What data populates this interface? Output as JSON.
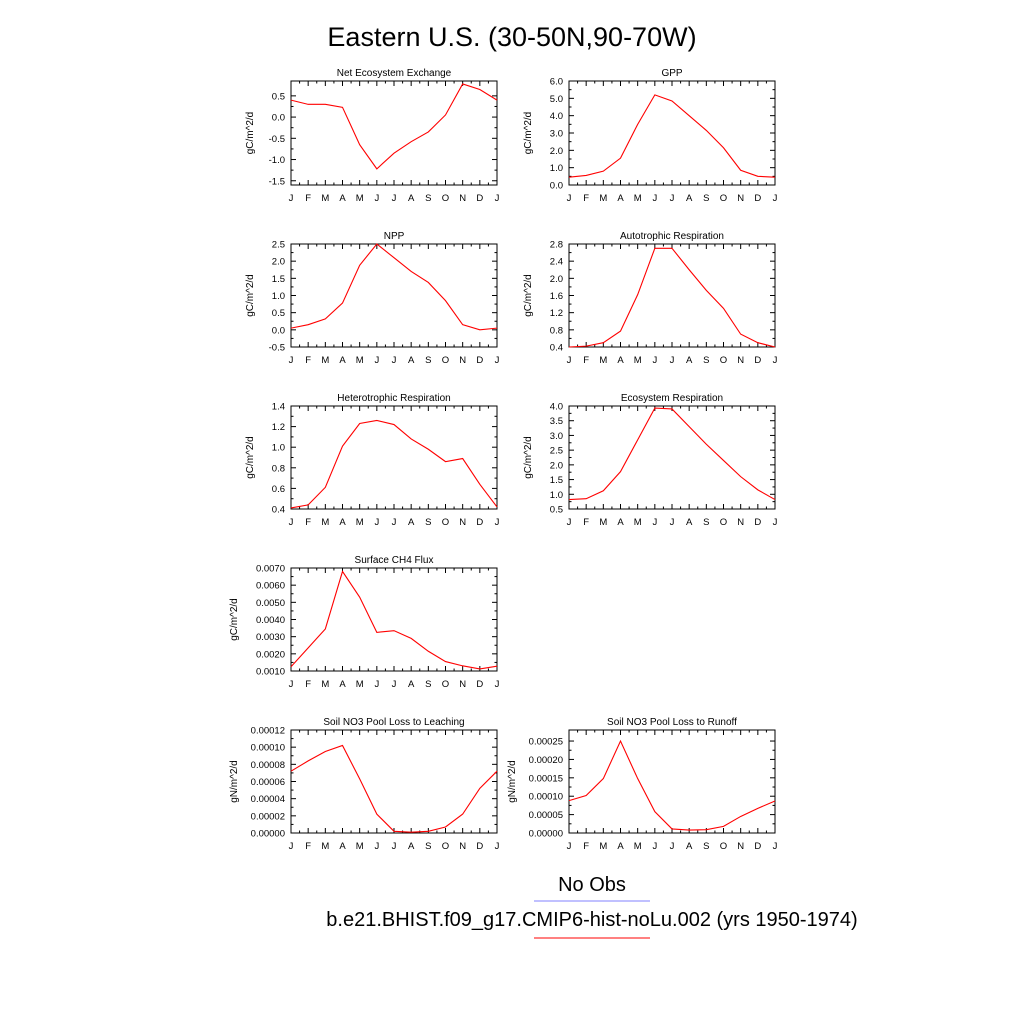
{
  "figure": {
    "title": "Eastern U.S. (30-50N,90-70W)",
    "series_color": "#ff0000",
    "obs_color": "#8080ff"
  },
  "legend": {
    "obs_label": "No Obs",
    "model_label": "b.e21.BHIST.f09_g17.CMIP6-hist-noLu.002 (yrs 1950-1974)"
  },
  "chart_data": [
    {
      "type": "line",
      "title": "Net Ecosystem Exchange",
      "ylabel": "gC/m^2/d",
      "x": [
        "J",
        "F",
        "M",
        "A",
        "M",
        "J",
        "J",
        "A",
        "S",
        "O",
        "N",
        "D",
        "J"
      ],
      "ylim": [
        -1.6,
        0.85
      ],
      "yticks": [
        -1.5,
        -1.0,
        -0.5,
        0.0,
        0.5
      ],
      "ytick_labels": [
        "-1.5",
        "-1.0",
        "-0.5",
        "0.0",
        "0.5"
      ],
      "series": [
        {
          "values": [
            0.4,
            0.3,
            0.3,
            0.23,
            -0.65,
            -1.22,
            -0.85,
            -0.58,
            -0.35,
            0.05,
            0.78,
            0.65,
            0.4
          ]
        }
      ]
    },
    {
      "type": "line",
      "title": "GPP",
      "ylabel": "gC/m^2/d",
      "x": [
        "J",
        "F",
        "M",
        "A",
        "M",
        "J",
        "J",
        "A",
        "S",
        "O",
        "N",
        "D",
        "J"
      ],
      "ylim": [
        0.0,
        6.0
      ],
      "yticks": [
        0.0,
        1.0,
        2.0,
        3.0,
        4.0,
        5.0,
        6.0
      ],
      "ytick_labels": [
        "0.0",
        "1.0",
        "2.0",
        "3.0",
        "4.0",
        "5.0",
        "6.0"
      ],
      "series": [
        {
          "values": [
            0.45,
            0.55,
            0.8,
            1.55,
            3.5,
            5.2,
            4.85,
            4.0,
            3.15,
            2.15,
            0.85,
            0.5,
            0.45
          ]
        }
      ]
    },
    {
      "type": "line",
      "title": "NPP",
      "ylabel": "gC/m^2/d",
      "x": [
        "J",
        "F",
        "M",
        "A",
        "M",
        "J",
        "J",
        "A",
        "S",
        "O",
        "N",
        "D",
        "J"
      ],
      "ylim": [
        -0.5,
        2.5
      ],
      "yticks": [
        -0.5,
        0.0,
        0.5,
        1.0,
        1.5,
        2.0,
        2.5
      ],
      "ytick_labels": [
        "-0.5",
        "0.0",
        "0.5",
        "1.0",
        "1.5",
        "2.0",
        "2.5"
      ],
      "series": [
        {
          "values": [
            0.05,
            0.15,
            0.32,
            0.78,
            1.88,
            2.5,
            2.1,
            1.7,
            1.38,
            0.85,
            0.15,
            0.0,
            0.05
          ]
        }
      ]
    },
    {
      "type": "line",
      "title": "Autotrophic Respiration",
      "ylabel": "gC/m^2/d",
      "x": [
        "J",
        "F",
        "M",
        "A",
        "M",
        "J",
        "J",
        "A",
        "S",
        "O",
        "N",
        "D",
        "J"
      ],
      "ylim": [
        0.4,
        2.8
      ],
      "yticks": [
        0.4,
        0.8,
        1.2,
        1.6,
        2.0,
        2.4,
        2.8
      ],
      "ytick_labels": [
        "0.4",
        "0.8",
        "1.2",
        "1.6",
        "2.0",
        "2.4",
        "2.8"
      ],
      "series": [
        {
          "values": [
            0.4,
            0.42,
            0.5,
            0.77,
            1.62,
            2.7,
            2.7,
            2.2,
            1.72,
            1.3,
            0.7,
            0.5,
            0.4
          ]
        }
      ]
    },
    {
      "type": "line",
      "title": "Heterotrophic Respiration",
      "ylabel": "gC/m^2/d",
      "x": [
        "J",
        "F",
        "M",
        "A",
        "M",
        "J",
        "J",
        "A",
        "S",
        "O",
        "N",
        "D",
        "J"
      ],
      "ylim": [
        0.4,
        1.4
      ],
      "yticks": [
        0.4,
        0.6,
        0.8,
        1.0,
        1.2,
        1.4
      ],
      "ytick_labels": [
        "0.4",
        "0.6",
        "0.8",
        "1.0",
        "1.2",
        "1.4"
      ],
      "series": [
        {
          "values": [
            0.41,
            0.44,
            0.61,
            1.01,
            1.23,
            1.26,
            1.22,
            1.08,
            0.98,
            0.86,
            0.89,
            0.64,
            0.42
          ]
        }
      ]
    },
    {
      "type": "line",
      "title": "Ecosystem Respiration",
      "ylabel": "gC/m^2/d",
      "x": [
        "J",
        "F",
        "M",
        "A",
        "M",
        "J",
        "J",
        "A",
        "S",
        "O",
        "N",
        "D",
        "J"
      ],
      "ylim": [
        0.5,
        4.0
      ],
      "yticks": [
        0.5,
        1.0,
        1.5,
        2.0,
        2.5,
        3.0,
        3.5,
        4.0
      ],
      "ytick_labels": [
        "0.5",
        "1.0",
        "1.5",
        "2.0",
        "2.5",
        "3.0",
        "3.5",
        "4.0"
      ],
      "series": [
        {
          "values": [
            0.82,
            0.85,
            1.12,
            1.77,
            2.85,
            3.93,
            3.9,
            3.3,
            2.7,
            2.15,
            1.6,
            1.15,
            0.82
          ]
        }
      ]
    },
    {
      "type": "line",
      "title": "Surface CH4 Flux",
      "ylabel": "gC/m^2/d",
      "x": [
        "J",
        "F",
        "M",
        "A",
        "M",
        "J",
        "J",
        "A",
        "S",
        "O",
        "N",
        "D",
        "J"
      ],
      "ylim": [
        0.001,
        0.007
      ],
      "yticks": [
        0.001,
        0.002,
        0.003,
        0.004,
        0.005,
        0.006,
        0.007
      ],
      "ytick_labels": [
        "0.0010",
        "0.0020",
        "0.0030",
        "0.0040",
        "0.0050",
        "0.0060",
        "0.0070"
      ],
      "series": [
        {
          "values": [
            0.00125,
            0.00235,
            0.00345,
            0.0068,
            0.0053,
            0.00325,
            0.00335,
            0.0029,
            0.00215,
            0.00155,
            0.0013,
            0.00112,
            0.00128
          ]
        }
      ]
    },
    {
      "type": "line",
      "title": "Soil NO3 Pool Loss to Leaching",
      "ylabel": "gN/m^2/d",
      "x": [
        "J",
        "F",
        "M",
        "A",
        "M",
        "J",
        "J",
        "A",
        "S",
        "O",
        "N",
        "D",
        "J"
      ],
      "ylim": [
        0.0,
        0.00012
      ],
      "yticks": [
        0.0,
        2e-05,
        4e-05,
        6e-05,
        8e-05,
        0.0001,
        0.00012
      ],
      "ytick_labels": [
        "0.00000",
        "0.00002",
        "0.00004",
        "0.00006",
        "0.00008",
        "0.00010",
        "0.00012"
      ],
      "series": [
        {
          "values": [
            7.2e-05,
            8.4e-05,
            9.5e-05,
            0.000102,
            6.3e-05,
            2.2e-05,
            2e-06,
            1e-06,
            2e-06,
            7e-06,
            2.2e-05,
            5.2e-05,
            7.2e-05
          ]
        }
      ]
    },
    {
      "type": "line",
      "title": "Soil NO3 Pool Loss to Runoff",
      "ylabel": "gN/m^2/d",
      "x": [
        "J",
        "F",
        "M",
        "A",
        "M",
        "J",
        "J",
        "A",
        "S",
        "O",
        "N",
        "D",
        "J"
      ],
      "ylim": [
        0.0,
        0.00028
      ],
      "yticks": [
        0.0,
        5e-05,
        0.0001,
        0.00015,
        0.0002,
        0.00025
      ],
      "ytick_labels": [
        "0.00000",
        "0.00005",
        "0.00010",
        "0.00015",
        "0.00020",
        "0.00025"
      ],
      "series": [
        {
          "values": [
            8.8e-05,
            0.000102,
            0.000148,
            0.00025,
            0.000148,
            5.8e-05,
            1.1e-05,
            8e-06,
            9e-06,
            1.8e-05,
            4.5e-05,
            6.7e-05,
            8.7e-05
          ]
        }
      ]
    }
  ]
}
